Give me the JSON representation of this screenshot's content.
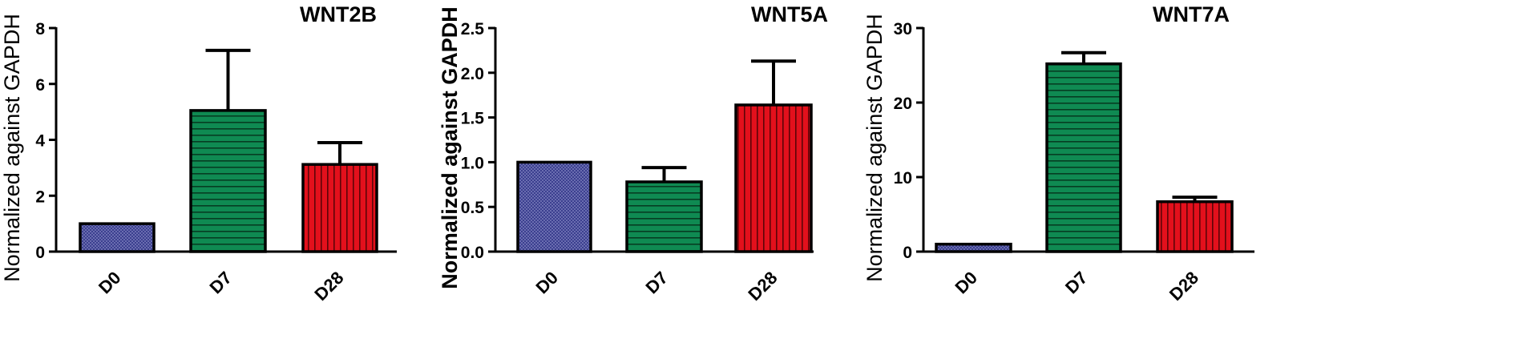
{
  "chart_data": [
    {
      "type": "bar",
      "title": "WNT2B",
      "ylabel": "Normalized against GAPDH",
      "xlabel": "",
      "categories": [
        "D0",
        "D7",
        "D28"
      ],
      "values": [
        1.0,
        5.05,
        3.12
      ],
      "error_upper": [
        0,
        2.15,
        0.78
      ],
      "ylim": [
        0,
        8
      ],
      "yticks": [
        0,
        2,
        4,
        6,
        8
      ],
      "ytick_labels": [
        "0",
        "2",
        "4",
        "6",
        "8"
      ],
      "bar_colors": [
        "#3b3f8f",
        "#0f8a52",
        "#e3101c"
      ],
      "bar_patterns": [
        "checker",
        "horizontal",
        "vertical"
      ],
      "ylabel_bold": false,
      "grid": false
    },
    {
      "type": "bar",
      "title": "WNT5A",
      "ylabel": "Normalized against GAPDH",
      "xlabel": "",
      "categories": [
        "D0",
        "D7",
        "D28"
      ],
      "values": [
        1.0,
        0.78,
        1.64
      ],
      "error_upper": [
        0,
        0.16,
        0.49
      ],
      "ylim": [
        0,
        2.5
      ],
      "yticks": [
        0,
        0.5,
        1.0,
        1.5,
        2.0,
        2.5
      ],
      "ytick_labels": [
        "0.0",
        "0.5",
        "1.0",
        "1.5",
        "2.0",
        "2.5"
      ],
      "bar_colors": [
        "#3b3f8f",
        "#0f8a52",
        "#e3101c"
      ],
      "bar_patterns": [
        "checker",
        "horizontal",
        "vertical"
      ],
      "ylabel_bold": true,
      "grid": false
    },
    {
      "type": "bar",
      "title": "WNT7A",
      "ylabel": "Normalized against GAPDH",
      "xlabel": "",
      "categories": [
        "D0",
        "D7",
        "D28"
      ],
      "values": [
        1.0,
        25.2,
        6.7
      ],
      "error_upper": [
        0,
        1.5,
        0.6
      ],
      "ylim": [
        0,
        30
      ],
      "yticks": [
        0,
        10,
        20,
        30
      ],
      "ytick_labels": [
        "0",
        "10",
        "20",
        "30"
      ],
      "bar_colors": [
        "#3b3f8f",
        "#0f8a52",
        "#e3101c"
      ],
      "bar_patterns": [
        "checker",
        "horizontal",
        "vertical"
      ],
      "ylabel_bold": false,
      "grid": false
    }
  ]
}
